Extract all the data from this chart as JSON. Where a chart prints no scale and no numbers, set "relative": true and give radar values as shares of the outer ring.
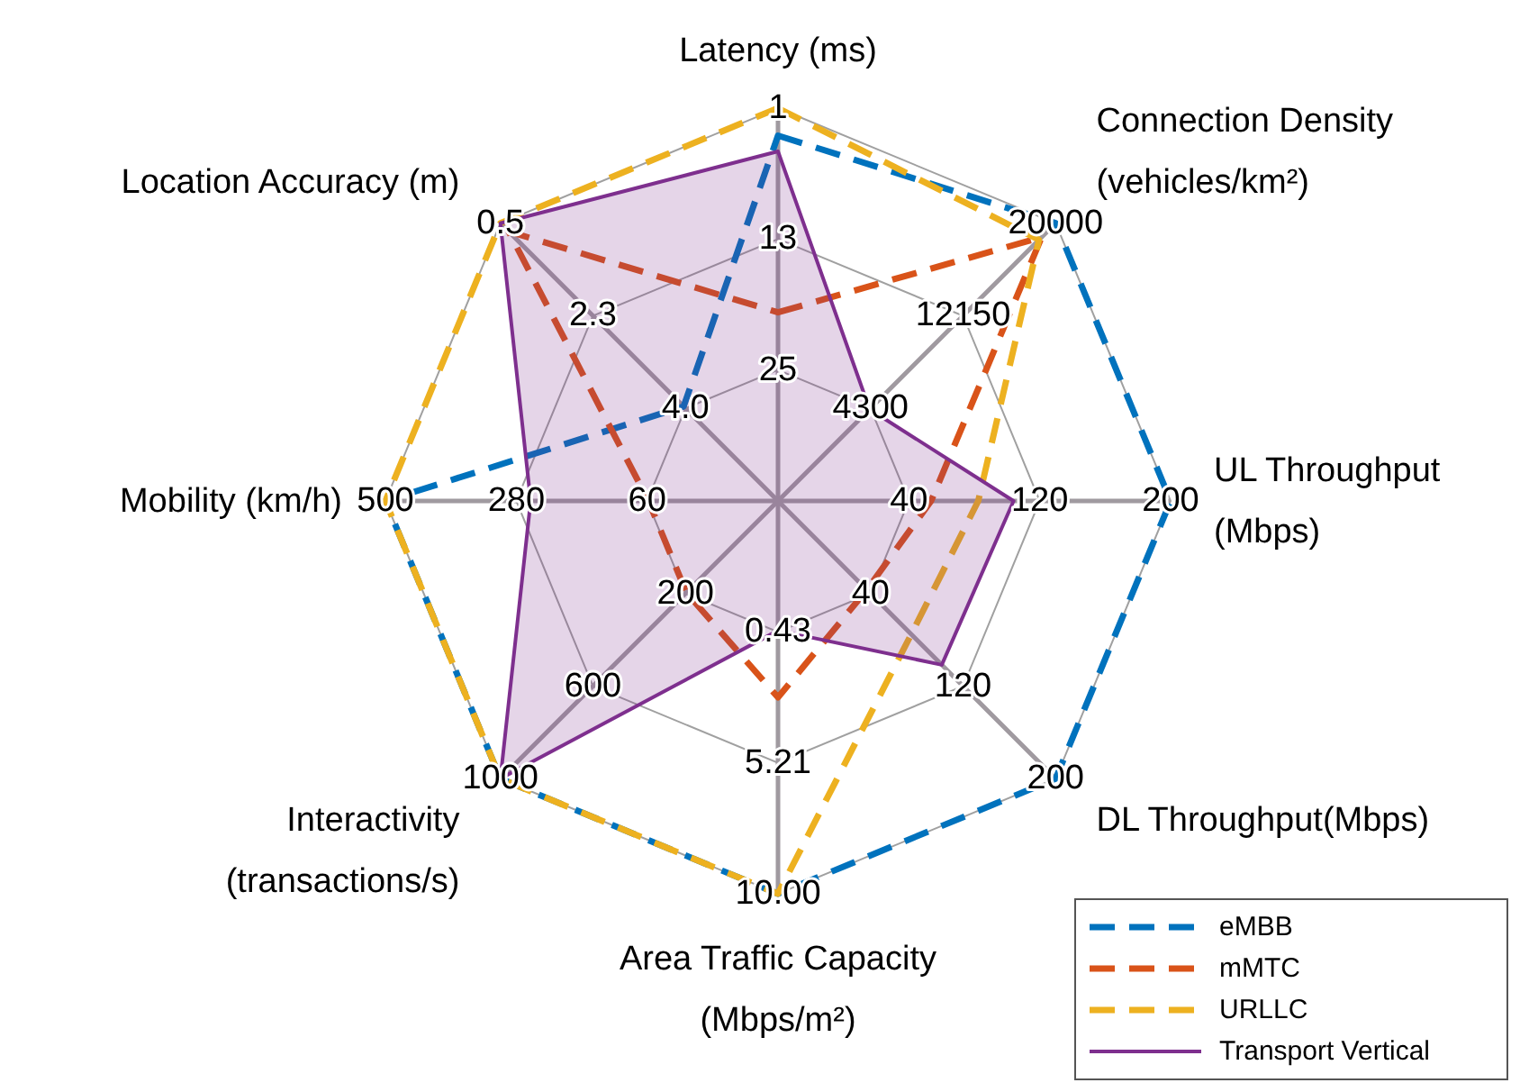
{
  "chart_data": {
    "type": "radar",
    "relative": true,
    "grid": true,
    "legend": "bottom right",
    "categories": [
      "Latency (ms)",
      "Connection Density\n(vehicles/km²)",
      "UL Throughput\n(Mbps)",
      "DL Throughput(Mbps)",
      "Area Traffic Capacity\n(Mbps/m²)",
      "Interactivity\n(transactions/s)",
      "Mobility (km/h)",
      "Location Accuracy (m)"
    ],
    "series": [
      {
        "name": "eMBB",
        "color": "#0072bd",
        "line_style": "dashed",
        "values": [
          0.93,
          1,
          1,
          1,
          1,
          1,
          1,
          0.34
        ]
      },
      {
        "name": "mMTC",
        "color": "#d95319",
        "line_style": "dashed",
        "values": [
          0.48,
          0.95,
          0.39,
          0.32,
          0.5,
          0.33,
          0.33,
          0.97
        ]
      },
      {
        "name": "URLLC",
        "color": "#edb120",
        "line_style": "dashed",
        "values": [
          1,
          0.94,
          0.51,
          0.48,
          1,
          1,
          1,
          1
        ]
      },
      {
        "name": "Transport Vertical",
        "type": "area",
        "color": "#7e2f8e",
        "line_style": "solid",
        "values": [
          0.89,
          0.33,
          0.6,
          0.59,
          0.33,
          1,
          0.63,
          1
        ]
      }
    ],
    "annotations": [
      "25",
      "13",
      "1",
      "4300",
      "12150",
      "20000",
      "40",
      "120",
      "200",
      "40",
      "120",
      "200",
      "0.43",
      "5.21",
      "10.00",
      "200",
      "600",
      "1000",
      "60",
      "280",
      "500",
      "4.0",
      "2.3",
      "0.5"
    ]
  }
}
